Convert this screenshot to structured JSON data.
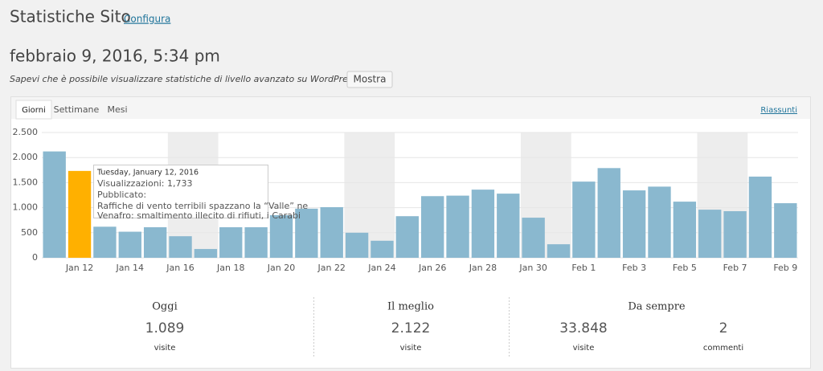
{
  "header": {
    "title": "Statistiche Sito",
    "configure_link": "Configura",
    "date": "febbraio 9, 2016, 5:34 pm",
    "notice": "Sapevi che è possibile visualizzare statistiche di livello avanzato su WordPress.com?",
    "notice_button": "Mostra"
  },
  "tabs": [
    "Giorni",
    "Settimane",
    "Mesi"
  ],
  "summary_link": "Riassunti",
  "chart_data": {
    "type": "bar",
    "categories": [
      null,
      "Jan 12",
      null,
      "Jan 14",
      null,
      "Jan 16",
      null,
      "Jan 18",
      null,
      "Jan 20",
      null,
      "Jan 22",
      null,
      "Jan 24",
      null,
      "Jan 26",
      null,
      "Jan 28",
      null,
      "Jan 30",
      null,
      "Feb 1",
      null,
      "Feb 3",
      null,
      "Feb 5",
      null,
      "Feb 7",
      null,
      "Feb 9"
    ],
    "values": [
      2122,
      1733,
      620,
      520,
      610,
      430,
      175,
      610,
      610,
      850,
      980,
      1010,
      500,
      340,
      830,
      1230,
      1240,
      1360,
      1280,
      800,
      270,
      1520,
      1790,
      1345,
      1420,
      1120,
      960,
      930,
      1620,
      1089
    ],
    "color": "#8ab8cf",
    "highlight_color": "#ffb000",
    "highlight_index": 1,
    "ylim": [
      0,
      2500
    ],
    "yticks": [
      0,
      500,
      {
        "value": 1000,
        "label": "1.000"
      },
      {
        "value": 1500,
        "label": "1.500"
      },
      {
        "value": 2000,
        "label": "2.000"
      },
      {
        "value": 2500,
        "label": "2.500"
      }
    ],
    "grid": true
  },
  "tooltip": {
    "date": "Tuesday, January 12, 2016",
    "views": "Visualizzazioni: 1,733",
    "published": "Pubblicato:",
    "lines": [
      "Raffiche di vento terribili spazzano la “Valle” ne",
      "Venafro: smaltimento illecito di rifiuti, i Carabi"
    ]
  },
  "summary": [
    {
      "title": "Oggi",
      "items": [
        {
          "value": "1.089",
          "label": "visite"
        }
      ]
    },
    {
      "title": "Il meglio",
      "items": [
        {
          "value": "2.122",
          "label": "visite"
        }
      ]
    },
    {
      "title": "Da sempre",
      "items": [
        {
          "value": "33.848",
          "label": "visite"
        },
        {
          "value": "2",
          "label": "commenti"
        }
      ]
    }
  ]
}
